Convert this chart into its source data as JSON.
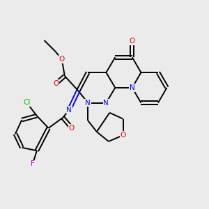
{
  "background_color": "#ebebeb",
  "bond_color": "#000000",
  "atom_colors": {
    "N": "#0000ee",
    "O": "#dd0000",
    "Cl": "#00bb00",
    "F": "#cc00cc",
    "C": "#000000"
  },
  "figsize": [
    3.0,
    3.0
  ],
  "dpi": 100
}
